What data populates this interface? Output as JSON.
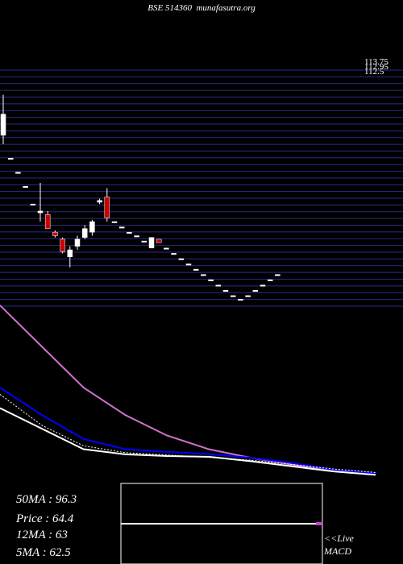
{
  "header": {
    "symbol": "BSE 514360",
    "site": "munafasutra.org"
  },
  "chart_data": {
    "type": "candlestick",
    "candles": [
      {
        "o": 102.5,
        "h": 108.0,
        "l": 94.0,
        "c": 96.5,
        "color": "#ffffff"
      },
      {
        "o": 90.0,
        "h": 90.0,
        "l": 90.0,
        "c": 90.0,
        "color": "#ffffff"
      },
      {
        "o": 86.0,
        "h": 86.0,
        "l": 86.0,
        "c": 86.0,
        "color": "#ffffff"
      },
      {
        "o": 82.0,
        "h": 82.0,
        "l": 82.0,
        "c": 82.0,
        "color": "#ffffff"
      },
      {
        "o": 77.0,
        "h": 77.0,
        "l": 77.0,
        "c": 77.0,
        "color": "#ffffff"
      },
      {
        "o": 74.5,
        "h": 83.0,
        "l": 72.0,
        "c": 75.0,
        "color": "#ffffff"
      },
      {
        "o": 74.0,
        "h": 75.0,
        "l": 70.0,
        "c": 70.0,
        "color": "#cc0000"
      },
      {
        "o": 69.0,
        "h": 69.5,
        "l": 67.5,
        "c": 68.0,
        "color": "#cc0000"
      },
      {
        "o": 67.0,
        "h": 67.5,
        "l": 63.0,
        "c": 63.5,
        "color": "#cc0000"
      },
      {
        "o": 62.0,
        "h": 65.0,
        "l": 59.0,
        "c": 64.0,
        "color": "#ffffff"
      },
      {
        "o": 65.0,
        "h": 68.0,
        "l": 64.0,
        "c": 67.0,
        "color": "#ffffff"
      },
      {
        "o": 67.5,
        "h": 71.0,
        "l": 67.0,
        "c": 70.0,
        "color": "#ffffff"
      },
      {
        "o": 69.0,
        "h": 72.5,
        "l": 68.0,
        "c": 72.0,
        "color": "#ffffff"
      },
      {
        "o": 78.0,
        "h": 78.5,
        "l": 77.0,
        "c": 77.5,
        "color": "#ffffff"
      },
      {
        "o": 79.0,
        "h": 81.5,
        "l": 72.0,
        "c": 73.0,
        "color": "#cc0000"
      },
      {
        "o": 72.0,
        "h": 72.0,
        "l": 72.0,
        "c": 72.0,
        "color": "#ffffff"
      },
      {
        "o": 70.5,
        "h": 70.5,
        "l": 70.5,
        "c": 70.5,
        "color": "#ffffff"
      },
      {
        "o": 69.0,
        "h": 69.0,
        "l": 69.0,
        "c": 69.0,
        "color": "#ffffff"
      },
      {
        "o": 68.0,
        "h": 68.0,
        "l": 68.0,
        "c": 68.0,
        "color": "#ffffff"
      },
      {
        "o": 66.5,
        "h": 66.5,
        "l": 66.5,
        "c": 66.5,
        "color": "#ffffff"
      },
      {
        "o": 64.5,
        "h": 67.5,
        "l": 64.5,
        "c": 67.5,
        "color": "#ffffff"
      },
      {
        "o": 67.0,
        "h": 67.0,
        "l": 66.0,
        "c": 66.0,
        "color": "#cc0000"
      },
      {
        "o": 64.5,
        "h": 64.5,
        "l": 64.5,
        "c": 64.5,
        "color": "#ffffff"
      },
      {
        "o": 63.0,
        "h": 63.0,
        "l": 63.0,
        "c": 63.0,
        "color": "#ffffff"
      },
      {
        "o": 61.5,
        "h": 61.5,
        "l": 61.5,
        "c": 61.5,
        "color": "#ffffff"
      },
      {
        "o": 60.0,
        "h": 60.0,
        "l": 60.0,
        "c": 60.0,
        "color": "#ffffff"
      },
      {
        "o": 58.5,
        "h": 58.5,
        "l": 58.5,
        "c": 58.5,
        "color": "#ffffff"
      },
      {
        "o": 57.0,
        "h": 57.0,
        "l": 57.0,
        "c": 57.0,
        "color": "#ffffff"
      },
      {
        "o": 55.5,
        "h": 55.5,
        "l": 55.5,
        "c": 55.5,
        "color": "#ffffff"
      },
      {
        "o": 54.0,
        "h": 54.0,
        "l": 54.0,
        "c": 54.0,
        "color": "#ffffff"
      },
      {
        "o": 52.5,
        "h": 52.5,
        "l": 52.5,
        "c": 52.5,
        "color": "#ffffff"
      },
      {
        "o": 51.0,
        "h": 51.0,
        "l": 51.0,
        "c": 51.0,
        "color": "#ffffff"
      },
      {
        "o": 50.0,
        "h": 50.0,
        "l": 50.0,
        "c": 50.0,
        "color": "#ffffff"
      },
      {
        "o": 51.0,
        "h": 51.0,
        "l": 51.0,
        "c": 51.0,
        "color": "#ffffff"
      },
      {
        "o": 52.5,
        "h": 52.5,
        "l": 52.5,
        "c": 52.5,
        "color": "#ffffff"
      },
      {
        "o": 54.0,
        "h": 54.0,
        "l": 54.0,
        "c": 54.0,
        "color": "#ffffff"
      },
      {
        "o": 55.5,
        "h": 55.5,
        "l": 55.5,
        "c": 55.5,
        "color": "#ffffff"
      },
      {
        "o": 57.0,
        "h": 57.0,
        "l": 57.0,
        "c": 57.0,
        "color": "#ffffff"
      }
    ],
    "price_range": [
      48,
      115
    ],
    "right_tick_labels": [
      "113.75",
      "112.95",
      "112.5"
    ],
    "gridline_count": 36,
    "ma_series": [
      {
        "color": "#d070d0",
        "values": [
          52.0,
          40.0,
          28.0,
          20.0,
          14.0,
          10.0,
          7.5,
          5.5,
          4.0,
          3.0
        ]
      },
      {
        "color": "#0000ff",
        "values": [
          28.0,
          20.0,
          13.0,
          10.0,
          9.2,
          8.6,
          7.5,
          6.0,
          4.0,
          3.0
        ]
      },
      {
        "color": "#ffffff",
        "values": [
          22.0,
          16.0,
          10.0,
          8.5,
          8.0,
          7.8,
          6.5,
          5.0,
          3.5,
          2.5
        ]
      },
      {
        "color": "#ffffff",
        "dashed": true,
        "values": [
          26.0,
          17.0,
          11.0,
          9.0,
          8.3,
          7.6,
          6.8,
          5.5,
          4.2,
          3.2
        ]
      }
    ],
    "macd": {
      "line_color": "#ffffff",
      "marker_color": "#cc44cc"
    },
    "colors": {
      "background": "#000000",
      "grid": "#2a2a8a",
      "bull": "#ffffff",
      "bear": "#cc0000"
    }
  },
  "stats": {
    "ma50": "50MA : 96.3",
    "price": "Price   : 64.4",
    "ma12": "12MA : 63",
    "ma5": "5MA : 62.5"
  },
  "macd_label": {
    "line1": "<<Live",
    "line2": "MACD"
  }
}
